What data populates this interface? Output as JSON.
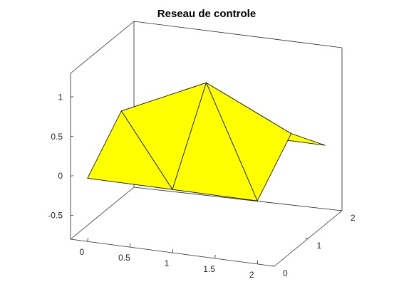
{
  "chart_data": {
    "type": "surface",
    "title": "Reseau de controle",
    "xlabel": "",
    "ylabel": "",
    "zlabel": "",
    "xlim": [
      -0.2,
      2.2
    ],
    "ylim": [
      0,
      2
    ],
    "zlim": [
      -0.8,
      1.3
    ],
    "x_ticks": [
      0,
      0.5,
      1,
      1.5,
      2
    ],
    "x_tick_labels": [
      "0",
      "0.5",
      "1",
      "1.5",
      "2"
    ],
    "y_ticks": [
      0,
      1,
      2
    ],
    "y_tick_labels": [
      "0",
      "1",
      "2"
    ],
    "z_ticks": [
      -0.5,
      0,
      0.5,
      1
    ],
    "z_tick_labels": [
      "-0.5",
      "0",
      "0.5",
      "1"
    ],
    "grid": false,
    "face_color": "#ffff00",
    "edge_color": "#000000",
    "control_net": {
      "x": [
        [
          0,
          1,
          2
        ],
        [
          0,
          1,
          2
        ],
        [
          0,
          1,
          2
        ]
      ],
      "y": [
        [
          0,
          0,
          0
        ],
        [
          1,
          1,
          1
        ],
        [
          2,
          2,
          2
        ]
      ],
      "z": [
        [
          0,
          0,
          0
        ],
        [
          0.5,
          1,
          0.5
        ],
        [
          0,
          0,
          0
        ]
      ]
    }
  }
}
